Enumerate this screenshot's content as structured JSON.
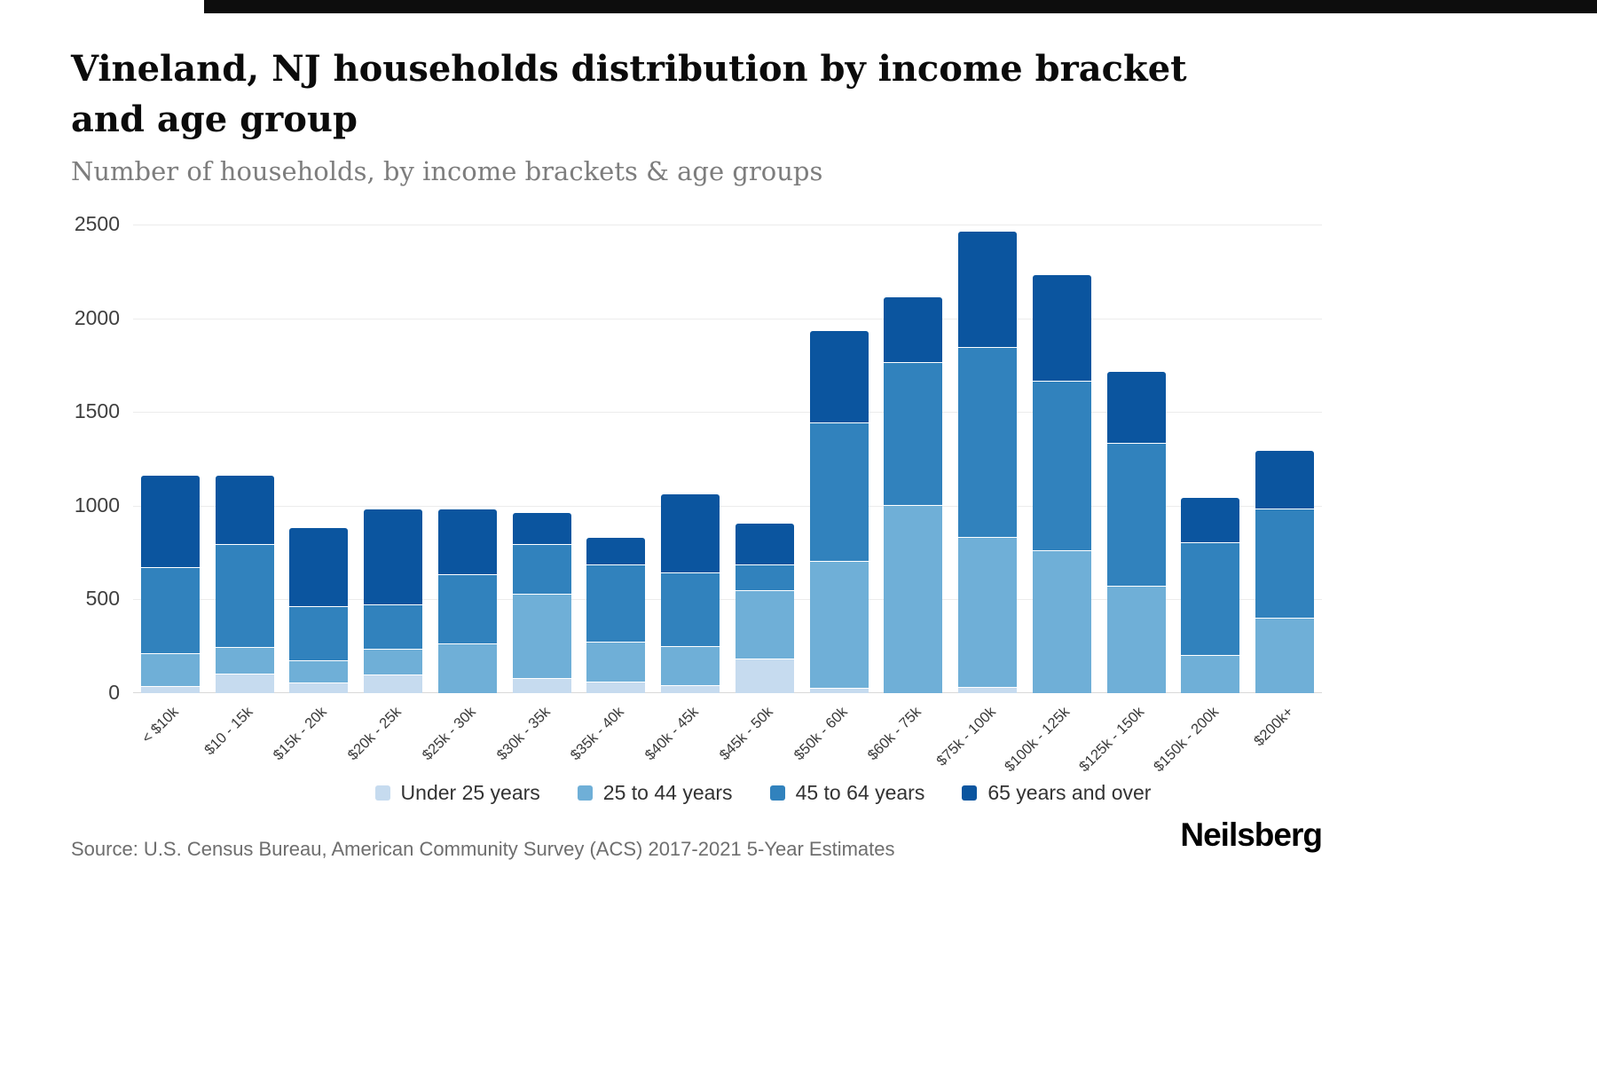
{
  "page": {
    "title": "Vineland, NJ households distribution by income bracket and age group",
    "subtitle": "Number of households, by income brackets & age groups",
    "source": "Source: U.S. Census Bureau, American Community Survey (ACS) 2017-2021 5-Year Estimates",
    "brand": "Neilsberg"
  },
  "chart_data": {
    "type": "bar",
    "stacked": true,
    "title": "Vineland, NJ households distribution by income bracket and age group",
    "subtitle": "Number of households, by income brackets & age groups",
    "xlabel": "",
    "ylabel": "",
    "ylim": [
      0,
      2500
    ],
    "yticks": [
      0,
      500,
      1000,
      1500,
      2000,
      2500
    ],
    "grid": true,
    "legend_position": "bottom",
    "categories": [
      "< $10k",
      "$10 - 15k",
      "$15k - 20k",
      "$20k - 25k",
      "$25k - 30k",
      "$30k - 35k",
      "$35k - 40k",
      "$40k - 45k",
      "$45k - 50k",
      "$50k - 60k",
      "$60k - 75k",
      "$75k - 100k",
      "$100k - 125k",
      "$125k - 150k",
      "$150k - 200k",
      "$200k+"
    ],
    "series": [
      {
        "name": "Under 25 years",
        "color": "#c6dbef",
        "values": [
          35,
          100,
          50,
          95,
          0,
          75,
          55,
          40,
          180,
          25,
          0,
          30,
          0,
          0,
          0,
          0
        ]
      },
      {
        "name": "25 to 44 years",
        "color": "#6fafd7",
        "values": [
          175,
          140,
          120,
          135,
          260,
          450,
          215,
          205,
          365,
          675,
          1000,
          800,
          760,
          570,
          200,
          400
        ]
      },
      {
        "name": "45 to 64 years",
        "color": "#3182bd",
        "values": [
          460,
          550,
          290,
          240,
          370,
          265,
          410,
          395,
          135,
          740,
          760,
          1010,
          900,
          760,
          600,
          580
        ]
      },
      {
        "name": "65 years and over",
        "color": "#0b559f",
        "values": [
          490,
          370,
          420,
          510,
          350,
          170,
          150,
          420,
          225,
          490,
          350,
          620,
          570,
          385,
          240,
          315
        ]
      }
    ]
  }
}
